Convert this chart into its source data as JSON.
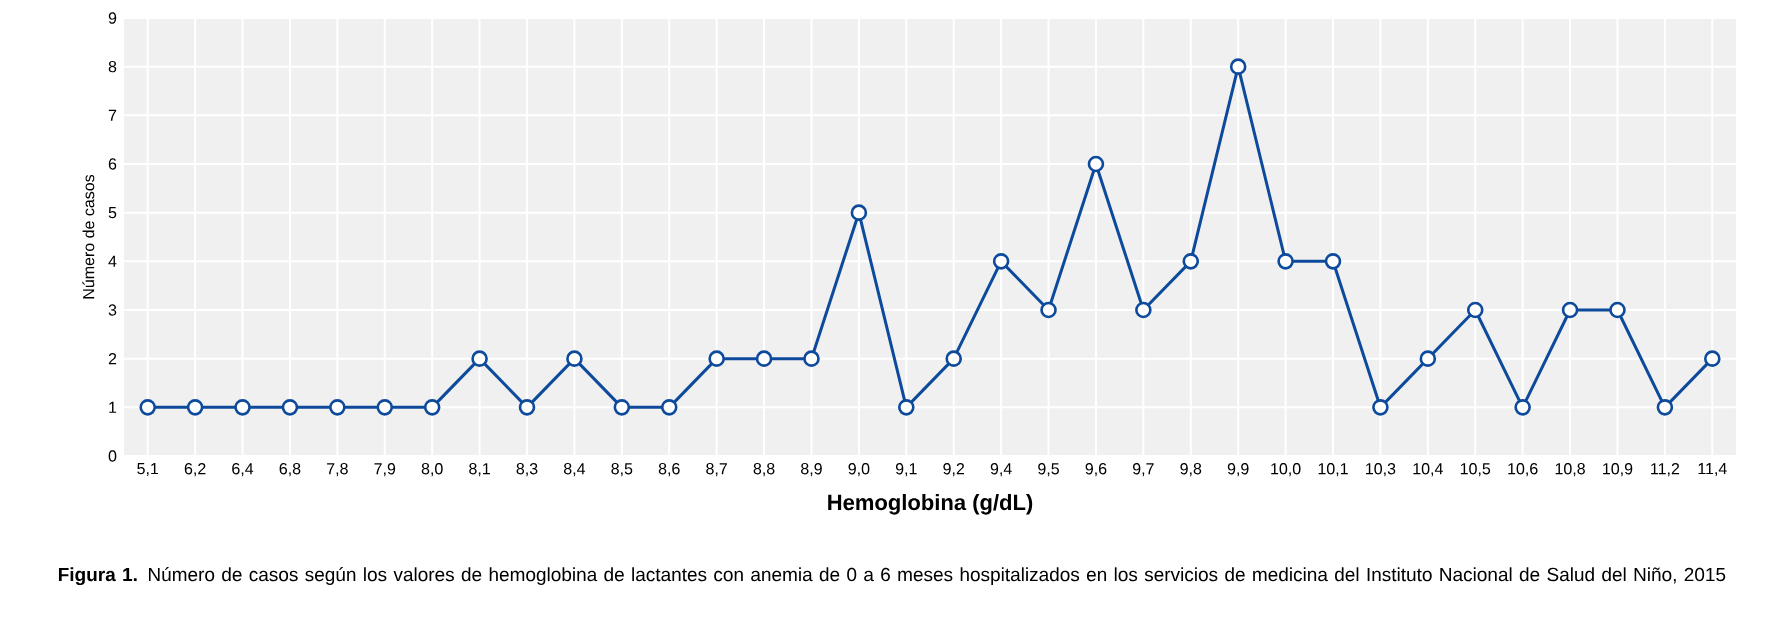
{
  "chart_data": {
    "type": "line",
    "xlabel": "Hemoglobina (g/dL)",
    "ylabel": "Número de casos",
    "categories": [
      "5,1",
      "6,2",
      "6,4",
      "6,8",
      "7,8",
      "7,9",
      "8,0",
      "8,1",
      "8,3",
      "8,4",
      "8,5",
      "8,6",
      "8,7",
      "8,8",
      "8,9",
      "9,0",
      "9,1",
      "9,2",
      "9,4",
      "9,5",
      "9,6",
      "9,7",
      "9,8",
      "9,9",
      "10,0",
      "10,1",
      "10,3",
      "10,4",
      "10,5",
      "10,6",
      "10,8",
      "10,9",
      "11,2",
      "11,4"
    ],
    "series": [
      {
        "color": "#0d4a9c",
        "values": [
          1,
          1,
          1,
          1,
          1,
          1,
          1,
          2,
          1,
          2,
          1,
          1,
          2,
          2,
          2,
          5,
          1,
          2,
          4,
          3,
          6,
          3,
          4,
          8,
          4,
          4,
          1,
          2,
          3,
          1,
          3,
          3,
          1,
          2
        ]
      }
    ],
    "ylim": [
      0,
      9
    ],
    "yticks": [
      0,
      1,
      2,
      3,
      4,
      5,
      6,
      7,
      8,
      9
    ],
    "grid": true,
    "marker": "circle",
    "line_style": "solid",
    "annotations": [
      "**Figura 1.** Número de casos según los valores de hemoglobina de lactantes con anemia de 0 a 6 meses hospitalizados en los servicios de medicina del Instituto Nacional de Salud del Niño, 2015"
    ]
  }
}
